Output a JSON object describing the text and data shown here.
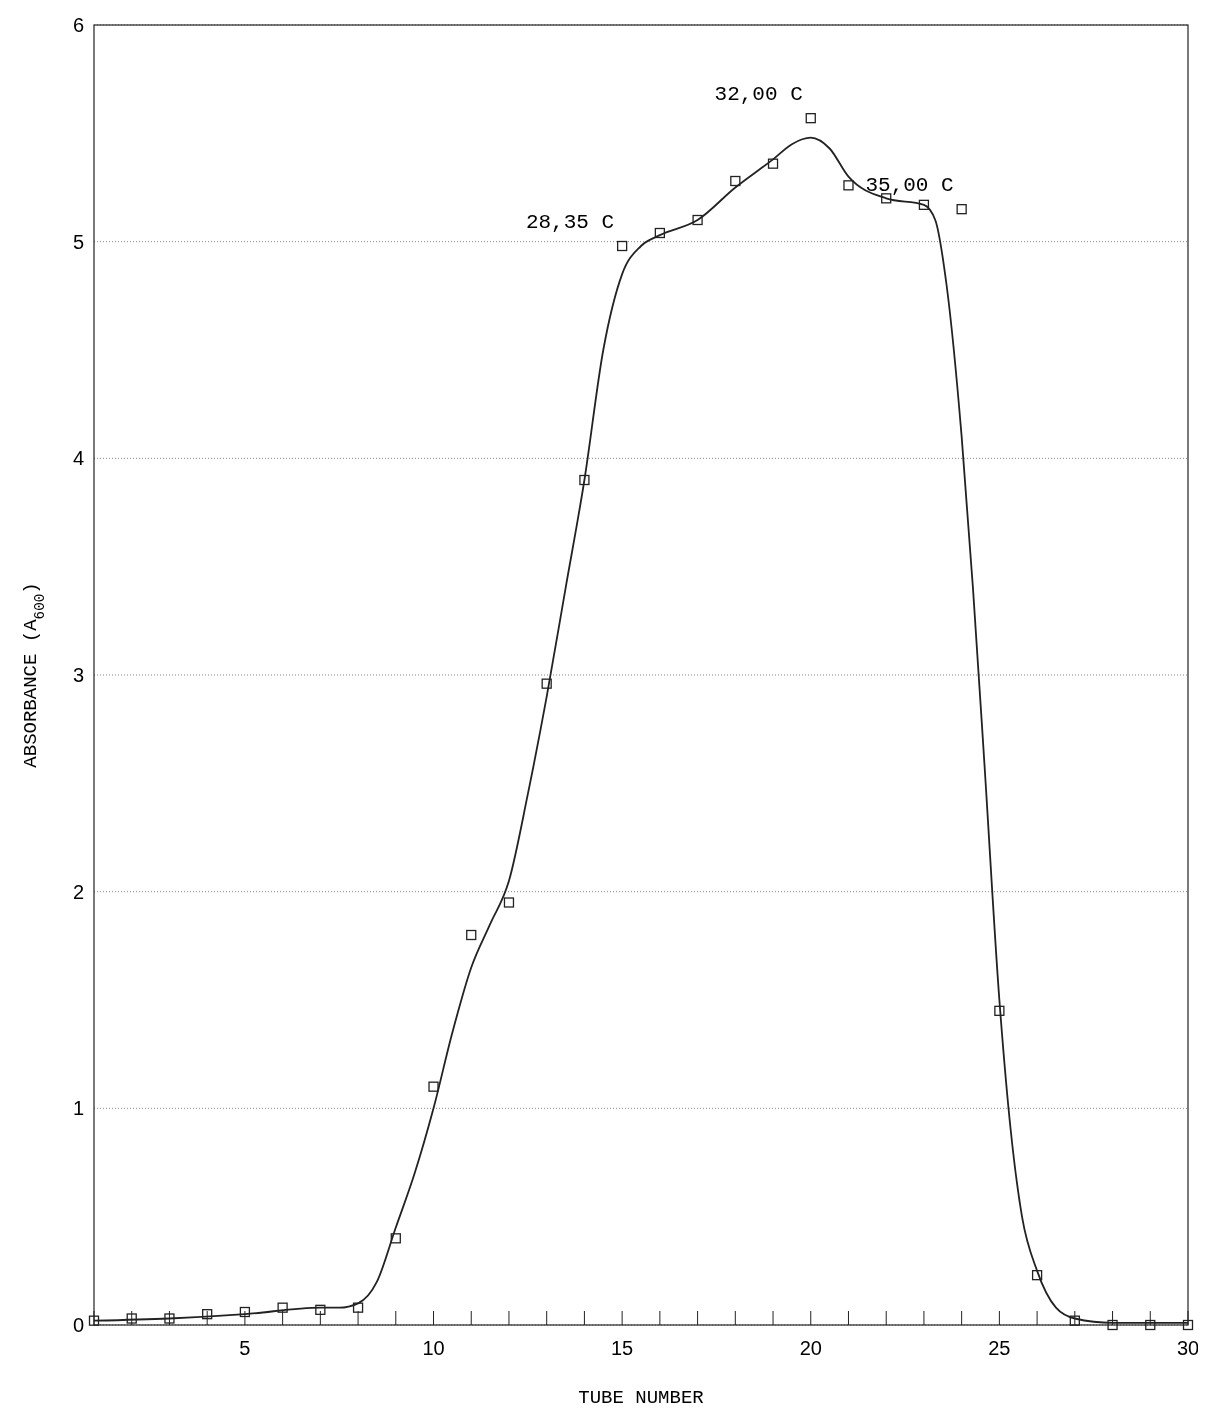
{
  "chart_data": {
    "type": "scatter",
    "xlabel": "TUBE NUMBER",
    "ylabel": "ABSORBANCE (A$_{600}$)",
    "xlim": [
      1,
      30
    ],
    "ylim": [
      0,
      6
    ],
    "xticks": [
      {
        "value": 1,
        "label": null
      },
      {
        "value": 2,
        "label": null
      },
      {
        "value": 3,
        "label": null
      },
      {
        "value": 4,
        "label": null
      },
      5,
      {
        "value": 6,
        "label": null
      },
      {
        "value": 7,
        "label": null
      },
      {
        "value": 8,
        "label": null
      },
      {
        "value": 9,
        "label": null
      },
      10,
      {
        "value": 11,
        "label": null
      },
      {
        "value": 12,
        "label": null
      },
      {
        "value": 13,
        "label": null
      },
      {
        "value": 14,
        "label": null
      },
      15,
      {
        "value": 16,
        "label": null
      },
      {
        "value": 17,
        "label": null
      },
      {
        "value": 18,
        "label": null
      },
      {
        "value": 19,
        "label": null
      },
      20,
      {
        "value": 21,
        "label": null
      },
      {
        "value": 22,
        "label": null
      },
      {
        "value": 23,
        "label": null
      },
      {
        "value": 24,
        "label": null
      },
      25,
      {
        "value": 26,
        "label": null
      },
      {
        "value": 27,
        "label": null
      },
      {
        "value": 28,
        "label": null
      },
      {
        "value": 29,
        "label": null
      },
      30
    ],
    "yticks": [
      0,
      1,
      2,
      3,
      4,
      5,
      6
    ],
    "grid": "y",
    "series": [
      {
        "type": "line",
        "color": "#222222",
        "marker": "none",
        "line_style": "solid",
        "x": [
          1,
          3,
          5,
          7,
          7.5,
          8,
          8.5,
          9,
          9.5,
          10,
          10.5,
          11,
          11.5,
          12,
          12.5,
          13,
          13.5,
          14,
          14.5,
          15,
          15.5,
          16,
          17,
          18,
          19,
          19.5,
          20,
          20.5,
          21,
          22,
          23,
          23.3,
          23.6,
          24,
          24.3,
          24.6,
          25,
          25.3,
          25.6,
          26,
          26.5,
          27,
          28,
          29,
          30
        ],
        "values": [
          0.02,
          0.03,
          0.05,
          0.08,
          0.08,
          0.1,
          0.2,
          0.45,
          0.7,
          1.0,
          1.35,
          1.65,
          1.85,
          2.05,
          2.45,
          2.9,
          3.4,
          3.9,
          4.5,
          4.85,
          4.98,
          5.03,
          5.1,
          5.25,
          5.38,
          5.45,
          5.48,
          5.43,
          5.3,
          5.2,
          5.17,
          5.1,
          4.8,
          4.1,
          3.4,
          2.6,
          1.5,
          0.9,
          0.5,
          0.25,
          0.08,
          0.03,
          0.01,
          0.01,
          0.01
        ]
      },
      {
        "color": "#222222",
        "marker": "square",
        "x": [
          1,
          2,
          3,
          4,
          5,
          6,
          7,
          8,
          9,
          10,
          11,
          12,
          13,
          14,
          15,
          16,
          17,
          18,
          19,
          20,
          21,
          22,
          23,
          24,
          25,
          26,
          27,
          28,
          29,
          30
        ],
        "values": [
          0.02,
          0.03,
          0.03,
          0.05,
          0.06,
          0.08,
          0.07,
          0.08,
          0.4,
          1.1,
          1.8,
          1.95,
          2.96,
          3.9,
          4.98,
          5.04,
          5.1,
          5.28,
          5.36,
          5.57,
          5.26,
          5.2,
          5.17,
          5.15,
          1.45,
          0.23,
          0.02,
          0,
          0,
          0
        ]
      }
    ],
    "annotations": [
      {
        "text": "28,35 C",
        "x": 15,
        "y": 4.98
      },
      {
        "text": "32,00 C",
        "x": 20,
        "y": 5.57
      },
      {
        "text": "35,00 C",
        "x": 24,
        "y": 5.15
      }
    ]
  }
}
